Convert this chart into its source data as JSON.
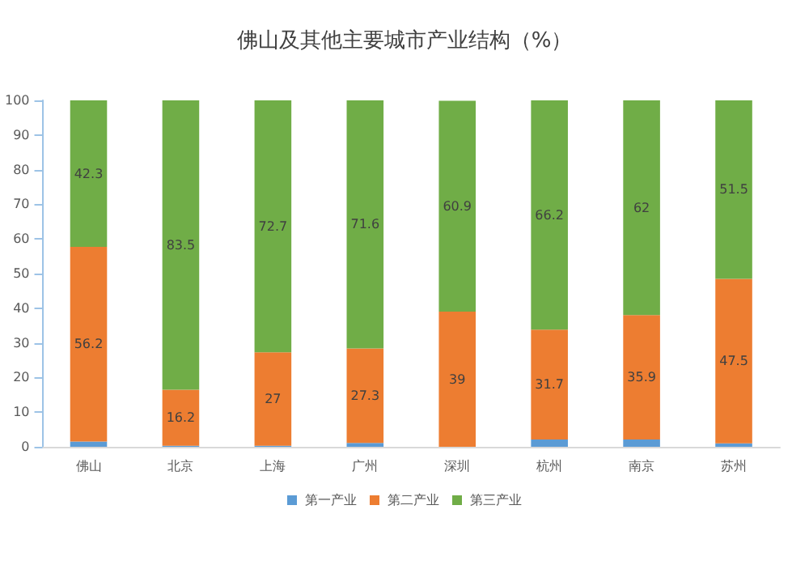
{
  "chart_data": {
    "type": "bar",
    "title": "佛山及其他主要城市产业结构（%）",
    "stacked": true,
    "categories": [
      "佛山",
      "北京",
      "上海",
      "广州",
      "深圳",
      "杭州",
      "南京",
      "苏州"
    ],
    "series": [
      {
        "name": "第一产业",
        "color": "#5b9bd5",
        "values": [
          1.5,
          0.3,
          0.3,
          1.1,
          null,
          2.1,
          2.1,
          1.0
        ]
      },
      {
        "name": "第二产业",
        "color": "#ed7d31",
        "values": [
          56.2,
          16.2,
          27,
          27.3,
          39,
          31.7,
          35.9,
          47.5
        ],
        "value_labels": [
          "56.2",
          "16.2",
          "27",
          "27.3",
          "39",
          "31.7",
          "35.9",
          "47.5"
        ]
      },
      {
        "name": "第三产业",
        "color": "#70ad47",
        "values": [
          42.3,
          83.5,
          72.7,
          71.6,
          60.9,
          66.2,
          62,
          51.5
        ],
        "value_labels": [
          "42.3",
          "83.5",
          "72.7",
          "71.6",
          "60.9",
          "66.2",
          "62",
          "51.5"
        ]
      }
    ],
    "ylim": [
      0,
      100
    ],
    "yticks": [
      0,
      10,
      20,
      30,
      40,
      50,
      60,
      70,
      80,
      90,
      100
    ],
    "grid": false,
    "legend": "bottom"
  }
}
